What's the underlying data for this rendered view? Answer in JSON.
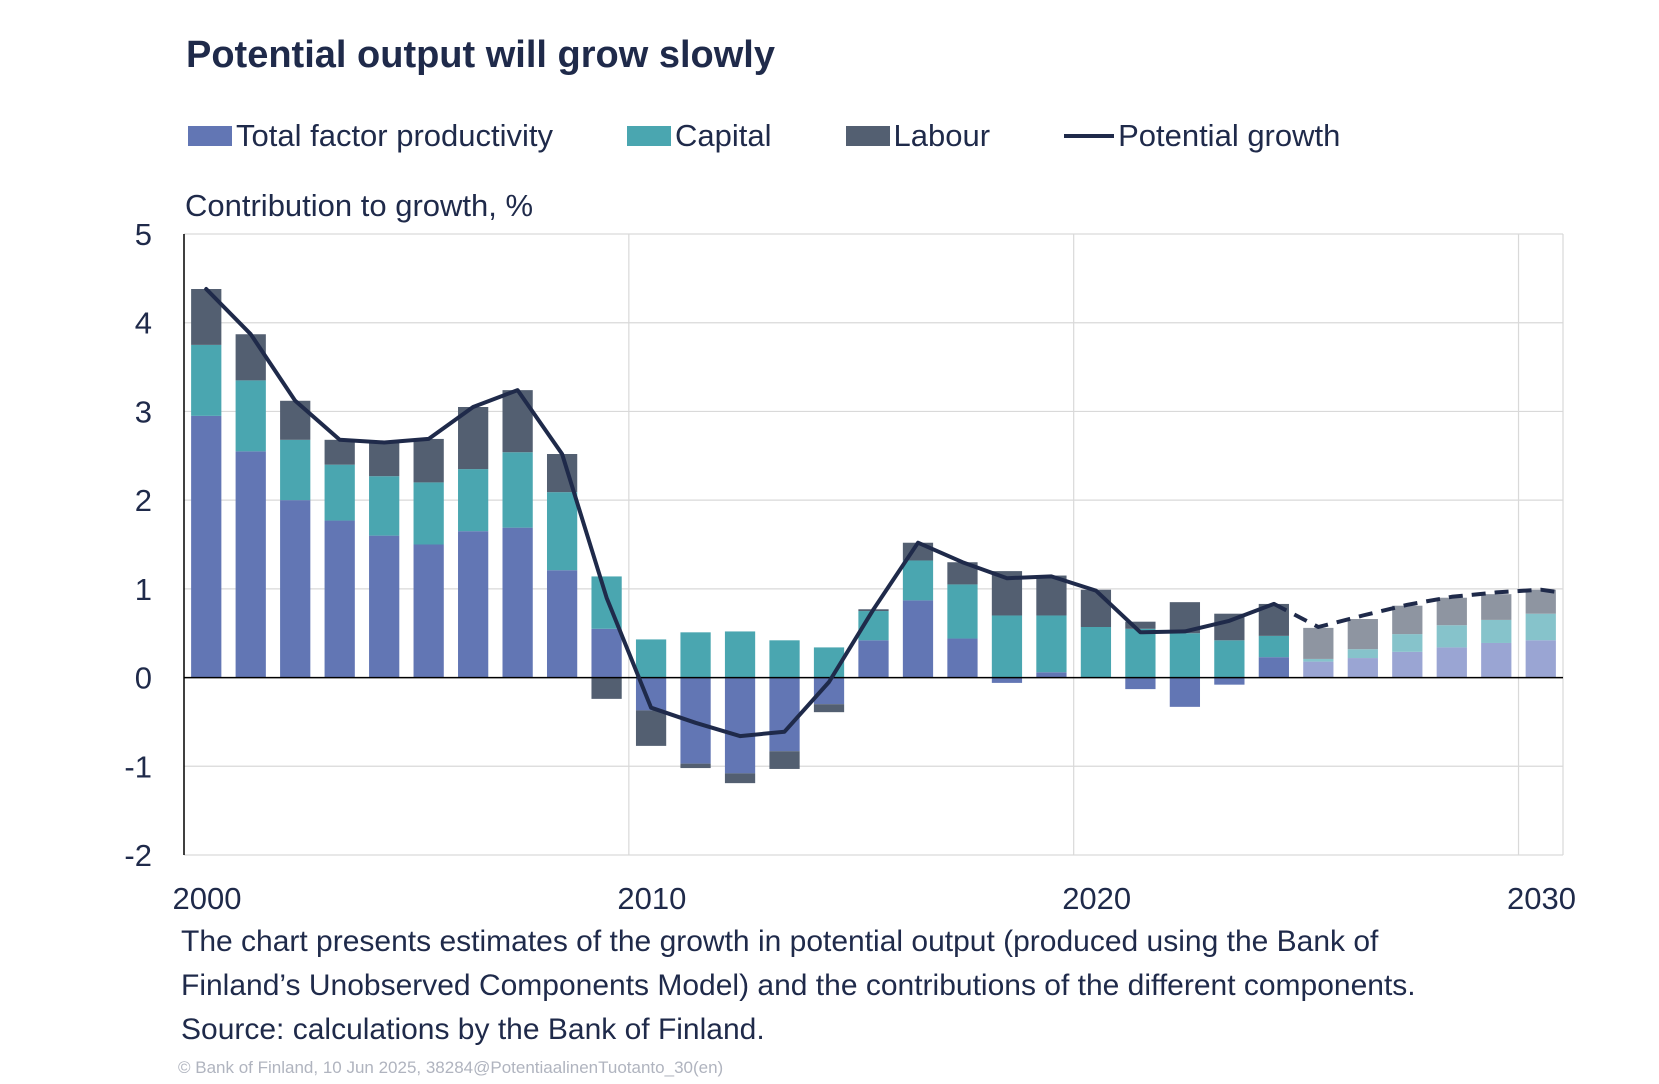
{
  "title": "Potential output will grow slowly",
  "legend": {
    "tfp": "Total factor productivity",
    "capital": "Capital",
    "labour": "Labour",
    "potential": "Potential growth"
  },
  "colors": {
    "tfp": "#6276b4",
    "capital": "#4aa6b0",
    "labour": "#535f71",
    "tfp_forecast": "#9aa5d3",
    "capital_forecast": "#86c3cb",
    "labour_forecast": "#8e95a1",
    "potential": "#1f2a4a",
    "grid": "#d9d9d9",
    "axis": "#000000"
  },
  "y_axis_title": "Contribution to growth, %",
  "notes": [
    "The chart presents estimates of the growth in potential output (produced using the Bank of",
    "Finland’s Unobserved Components Model) and the contributions of the different components.",
    "Source: calculations by the Bank of Finland."
  ],
  "copyright": "© Bank of Finland, 10 Jun 2025, 38284@PotentiaalinenTuotanto_30(en)",
  "chart_data": {
    "type": "bar",
    "stacked": true,
    "title": "Potential output will grow slowly",
    "ylabel": "Contribution to growth, %",
    "xlabel": "",
    "ylim": [
      -2,
      5
    ],
    "yticks": [
      -2,
      -1,
      0,
      1,
      2,
      3,
      4,
      5
    ],
    "xticks": [
      2000,
      2010,
      2020,
      2030
    ],
    "grid": true,
    "legend_position": "top",
    "first_forecast_year": 2025,
    "x": [
      2000,
      2001,
      2002,
      2003,
      2004,
      2005,
      2006,
      2007,
      2008,
      2009,
      2010,
      2011,
      2012,
      2013,
      2014,
      2015,
      2016,
      2017,
      2018,
      2019,
      2020,
      2021,
      2022,
      2023,
      2024,
      2025,
      2026,
      2027,
      2028,
      2029,
      2030
    ],
    "series": [
      {
        "key": "tfp",
        "name": "Total factor productivity",
        "type": "bar",
        "values": [
          2.95,
          2.55,
          2.0,
          1.77,
          1.6,
          1.5,
          1.65,
          1.69,
          1.21,
          0.55,
          -0.37,
          -0.97,
          -1.08,
          -0.83,
          -0.3,
          0.42,
          0.87,
          0.44,
          -0.06,
          0.06,
          0.0,
          -0.13,
          -0.33,
          -0.08,
          0.23,
          0.18,
          0.22,
          0.29,
          0.34,
          0.39,
          0.42
        ]
      },
      {
        "key": "capital",
        "name": "Capital",
        "type": "bar",
        "values": [
          0.8,
          0.8,
          0.68,
          0.63,
          0.67,
          0.7,
          0.7,
          0.85,
          0.88,
          0.59,
          0.43,
          0.51,
          0.52,
          0.42,
          0.34,
          0.33,
          0.45,
          0.61,
          0.7,
          0.64,
          0.57,
          0.55,
          0.5,
          0.42,
          0.24,
          0.03,
          0.1,
          0.2,
          0.25,
          0.26,
          0.3
        ]
      },
      {
        "key": "labour",
        "name": "Labour",
        "type": "bar",
        "values": [
          0.63,
          0.52,
          0.44,
          0.28,
          0.38,
          0.49,
          0.7,
          0.7,
          0.43,
          -0.24,
          -0.4,
          -0.05,
          -0.11,
          -0.2,
          -0.09,
          0.02,
          0.2,
          0.25,
          0.5,
          0.45,
          0.42,
          0.08,
          0.35,
          0.3,
          0.36,
          0.35,
          0.34,
          0.32,
          0.31,
          0.29,
          0.27
        ]
      },
      {
        "key": "potential",
        "name": "Potential growth",
        "type": "line",
        "values": [
          4.38,
          3.87,
          3.12,
          2.68,
          2.65,
          2.69,
          3.05,
          3.24,
          2.52,
          0.9,
          -0.34,
          -0.51,
          -0.66,
          -0.61,
          -0.05,
          0.77,
          1.52,
          1.3,
          1.12,
          1.14,
          0.98,
          0.51,
          0.52,
          0.64,
          0.83,
          0.57,
          0.7,
          0.82,
          0.91,
          0.96,
          0.99
        ]
      }
    ]
  }
}
